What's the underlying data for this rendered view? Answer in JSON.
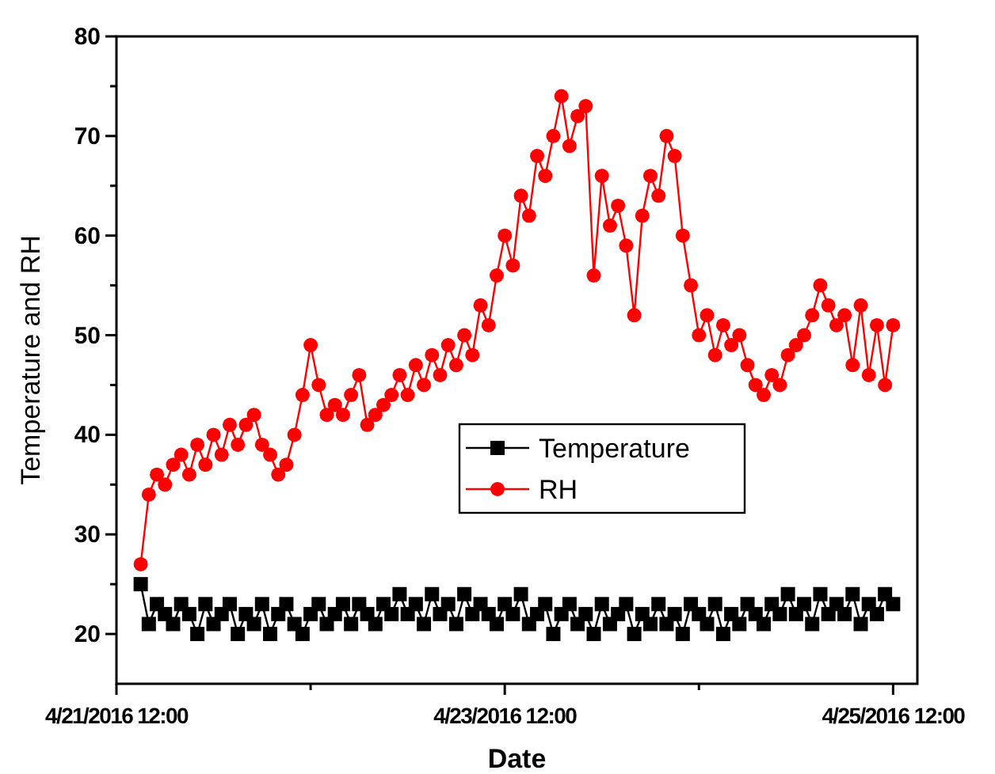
{
  "chart_data": {
    "type": "line",
    "xlabel": "Date",
    "ylabel": "Temperature and RH",
    "x": [
      "2016-04-21T15:00",
      "2016-04-21T16:00",
      "2016-04-21T17:00",
      "2016-04-21T18:00",
      "2016-04-21T19:00",
      "2016-04-21T20:00",
      "2016-04-21T21:00",
      "2016-04-21T22:00",
      "2016-04-21T23:00",
      "2016-04-22T00:00",
      "2016-04-22T01:00",
      "2016-04-22T02:00",
      "2016-04-22T03:00",
      "2016-04-22T04:00",
      "2016-04-22T05:00",
      "2016-04-22T06:00",
      "2016-04-22T07:00",
      "2016-04-22T08:00",
      "2016-04-22T09:00",
      "2016-04-22T10:00",
      "2016-04-22T11:00",
      "2016-04-22T12:00",
      "2016-04-22T13:00",
      "2016-04-22T14:00",
      "2016-04-22T15:00",
      "2016-04-22T16:00",
      "2016-04-22T17:00",
      "2016-04-22T18:00",
      "2016-04-22T19:00",
      "2016-04-22T20:00",
      "2016-04-22T21:00",
      "2016-04-22T22:00",
      "2016-04-22T23:00",
      "2016-04-23T00:00",
      "2016-04-23T01:00",
      "2016-04-23T02:00",
      "2016-04-23T03:00",
      "2016-04-23T04:00",
      "2016-04-23T05:00",
      "2016-04-23T06:00",
      "2016-04-23T07:00",
      "2016-04-23T08:00",
      "2016-04-23T09:00",
      "2016-04-23T10:00",
      "2016-04-23T11:00",
      "2016-04-23T12:00",
      "2016-04-23T13:00",
      "2016-04-23T14:00",
      "2016-04-23T15:00",
      "2016-04-23T16:00",
      "2016-04-23T17:00",
      "2016-04-23T18:00",
      "2016-04-23T19:00",
      "2016-04-23T20:00",
      "2016-04-23T21:00",
      "2016-04-23T22:00",
      "2016-04-23T23:00",
      "2016-04-24T00:00",
      "2016-04-24T01:00",
      "2016-04-24T02:00",
      "2016-04-24T03:00",
      "2016-04-24T04:00",
      "2016-04-24T05:00",
      "2016-04-24T06:00",
      "2016-04-24T07:00",
      "2016-04-24T08:00",
      "2016-04-24T09:00",
      "2016-04-24T10:00",
      "2016-04-24T11:00",
      "2016-04-24T12:00",
      "2016-04-24T13:00",
      "2016-04-24T14:00",
      "2016-04-24T15:00",
      "2016-04-24T16:00",
      "2016-04-24T17:00",
      "2016-04-24T18:00",
      "2016-04-24T19:00",
      "2016-04-24T20:00",
      "2016-04-24T21:00",
      "2016-04-24T22:00",
      "2016-04-24T23:00",
      "2016-04-25T00:00",
      "2016-04-25T01:00",
      "2016-04-25T02:00",
      "2016-04-25T03:00",
      "2016-04-25T04:00",
      "2016-04-25T05:00",
      "2016-04-25T06:00",
      "2016-04-25T07:00",
      "2016-04-25T08:00",
      "2016-04-25T09:00",
      "2016-04-25T10:00",
      "2016-04-25T11:00",
      "2016-04-25T12:00"
    ],
    "series": [
      {
        "name": "Temperature",
        "color": "#000000",
        "marker": "square",
        "values": [
          25,
          21,
          23,
          22,
          21,
          23,
          22,
          20,
          23,
          21,
          22,
          23,
          20,
          22,
          21,
          23,
          20,
          22,
          23,
          21,
          20,
          22,
          23,
          21,
          22,
          23,
          21,
          23,
          22,
          21,
          23,
          22,
          24,
          22,
          23,
          21,
          24,
          22,
          23,
          21,
          24,
          22,
          23,
          22,
          21,
          23,
          22,
          24,
          21,
          22,
          23,
          20,
          22,
          23,
          21,
          22,
          20,
          23,
          21,
          22,
          23,
          20,
          22,
          21,
          23,
          21,
          22,
          20,
          23,
          22,
          21,
          23,
          20,
          22,
          21,
          23,
          22,
          21,
          23,
          22,
          24,
          22,
          23,
          21,
          24,
          22,
          23,
          22,
          24,
          21,
          23,
          22,
          24,
          23
        ]
      },
      {
        "name": "RH",
        "color": "#ff0000",
        "marker": "circle",
        "values": [
          27,
          34,
          36,
          35,
          37,
          38,
          36,
          39,
          37,
          40,
          38,
          41,
          39,
          41,
          42,
          39,
          38,
          36,
          37,
          40,
          44,
          49,
          45,
          42,
          43,
          42,
          44,
          46,
          41,
          42,
          43,
          44,
          46,
          44,
          47,
          45,
          48,
          46,
          49,
          47,
          50,
          48,
          53,
          51,
          56,
          60,
          57,
          64,
          62,
          68,
          66,
          70,
          74,
          69,
          72,
          73,
          56,
          66,
          61,
          63,
          59,
          52,
          62,
          66,
          64,
          70,
          68,
          60,
          55,
          50,
          52,
          48,
          51,
          49,
          50,
          47,
          45,
          44,
          46,
          45,
          48,
          49,
          50,
          52,
          55,
          53,
          51,
          52,
          47,
          53,
          46,
          51,
          45,
          51
        ]
      }
    ],
    "xlim": [
      "2016-04-21T12:00",
      "2016-04-25T15:00"
    ],
    "xticks": [
      {
        "value": "2016-04-21T12:00",
        "label": "4/21/2016 12:00"
      },
      {
        "value": "2016-04-22T12:00",
        "label": null
      },
      {
        "value": "2016-04-23T12:00",
        "label": "4/23/2016 12:00"
      },
      {
        "value": "2016-04-24T12:00",
        "label": null
      },
      {
        "value": "2016-04-25T12:00",
        "label": "4/25/2016 12:00"
      }
    ],
    "ylim": [
      15,
      80
    ],
    "yticks": [
      20,
      {
        "value": 25,
        "label": null
      },
      30,
      {
        "value": 35,
        "label": null
      },
      40,
      {
        "value": 45,
        "label": null
      },
      50,
      {
        "value": 55,
        "label": null
      },
      60,
      {
        "value": 65,
        "label": null
      },
      70,
      {
        "value": 75,
        "label": null
      },
      80
    ],
    "grid": false,
    "legend": "center",
    "line_style": "solid"
  }
}
